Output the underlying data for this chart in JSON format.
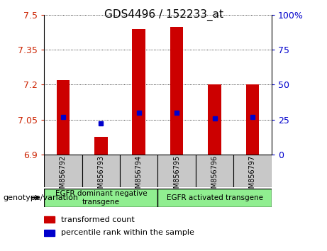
{
  "title": "GDS4496 / 152233_at",
  "samples": [
    "GSM856792",
    "GSM856793",
    "GSM856794",
    "GSM856795",
    "GSM856796",
    "GSM856797"
  ],
  "transformed_counts": [
    7.22,
    6.975,
    7.44,
    7.45,
    7.2,
    7.2
  ],
  "percentile_ranks": [
    27,
    22,
    30,
    30,
    26,
    27
  ],
  "y_min": 6.9,
  "y_max": 7.5,
  "y_ticks": [
    6.9,
    7.05,
    7.2,
    7.35,
    7.5
  ],
  "y_tick_labels": [
    "6.9",
    "7.05",
    "7.2",
    "7.35",
    "7.5"
  ],
  "right_y_ticks": [
    0,
    25,
    50,
    75,
    100
  ],
  "right_y_tick_labels": [
    "0",
    "25",
    "50",
    "75",
    "100%"
  ],
  "bar_color": "#cc0000",
  "dot_color": "#0000cc",
  "bar_bottom": 6.9,
  "group_ranges": [
    [
      0,
      2
    ],
    [
      3,
      5
    ]
  ],
  "group_labels": [
    "EGFR dominant negative\ntransgene",
    "EGFR activated transgene"
  ],
  "group_color": "#90ee90",
  "sample_box_color": "#c8c8c8",
  "genotype_label": "genotype/variation",
  "legend_red_label": "transformed count",
  "legend_blue_label": "percentile rank within the sample",
  "left_tick_color": "#cc2200",
  "right_tick_color": "#0000cc",
  "bar_width": 0.35,
  "title_fontsize": 11
}
